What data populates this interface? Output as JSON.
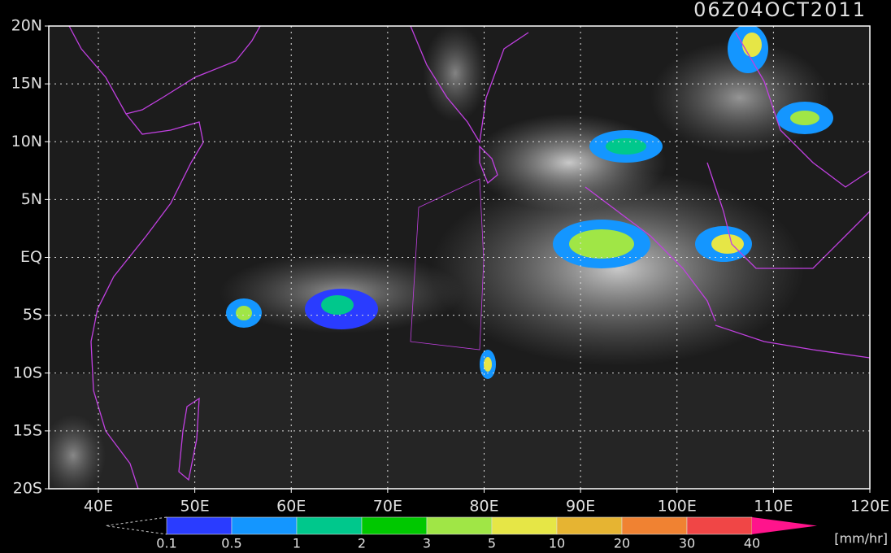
{
  "header": {
    "title": "06Z04OCT2011"
  },
  "map": {
    "lat_labels": [
      "20N",
      "15N",
      "10N",
      "5N",
      "EQ",
      "5S",
      "10S",
      "15S",
      "20S"
    ],
    "lon_labels": [
      "40E",
      "50E",
      "60E",
      "70E",
      "80E",
      "90E",
      "100E",
      "110E",
      "120E"
    ]
  },
  "colorbar": {
    "labels": [
      "0.1",
      "0.5",
      "1",
      "2",
      "3",
      "5",
      "10",
      "20",
      "30",
      "40"
    ],
    "colors": [
      "#2a3cff",
      "#1496ff",
      "#00c88c",
      "#00c800",
      "#a0e646",
      "#e6e646",
      "#e6b432",
      "#f08232",
      "#f04646"
    ],
    "over_color": "#ff148c",
    "unit": "[mm/hr]"
  }
}
